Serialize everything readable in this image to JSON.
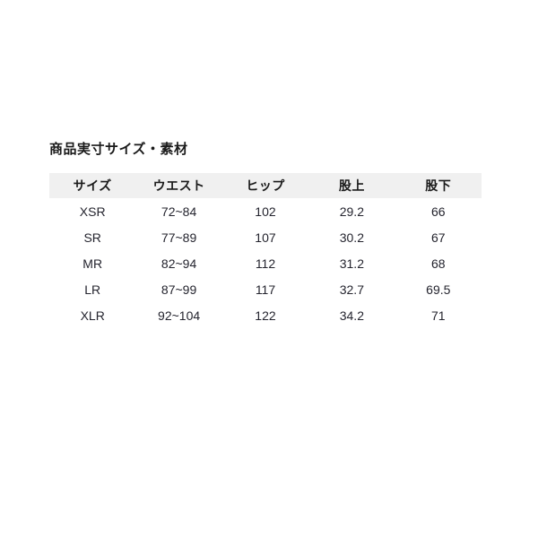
{
  "page": {
    "section_title": "商品実寸サイズ・素材"
  },
  "size_table": {
    "columns": [
      "サイズ",
      "ウエスト",
      "ヒップ",
      "股上",
      "股下"
    ],
    "rows": [
      [
        "XSR",
        "72~84",
        "102",
        "29.2",
        "66"
      ],
      [
        "SR",
        "77~89",
        "107",
        "30.2",
        "67"
      ],
      [
        "MR",
        "82~94",
        "112",
        "31.2",
        "68"
      ],
      [
        "LR",
        "87~99",
        "117",
        "32.7",
        "69.5"
      ],
      [
        "XLR",
        "92~104",
        "122",
        "34.2",
        "71"
      ]
    ]
  },
  "colors": {
    "page_background": "#ffffff",
    "header_background": "#f0f0f0",
    "text": "#24242e",
    "title_text": "#1a1a1a"
  }
}
